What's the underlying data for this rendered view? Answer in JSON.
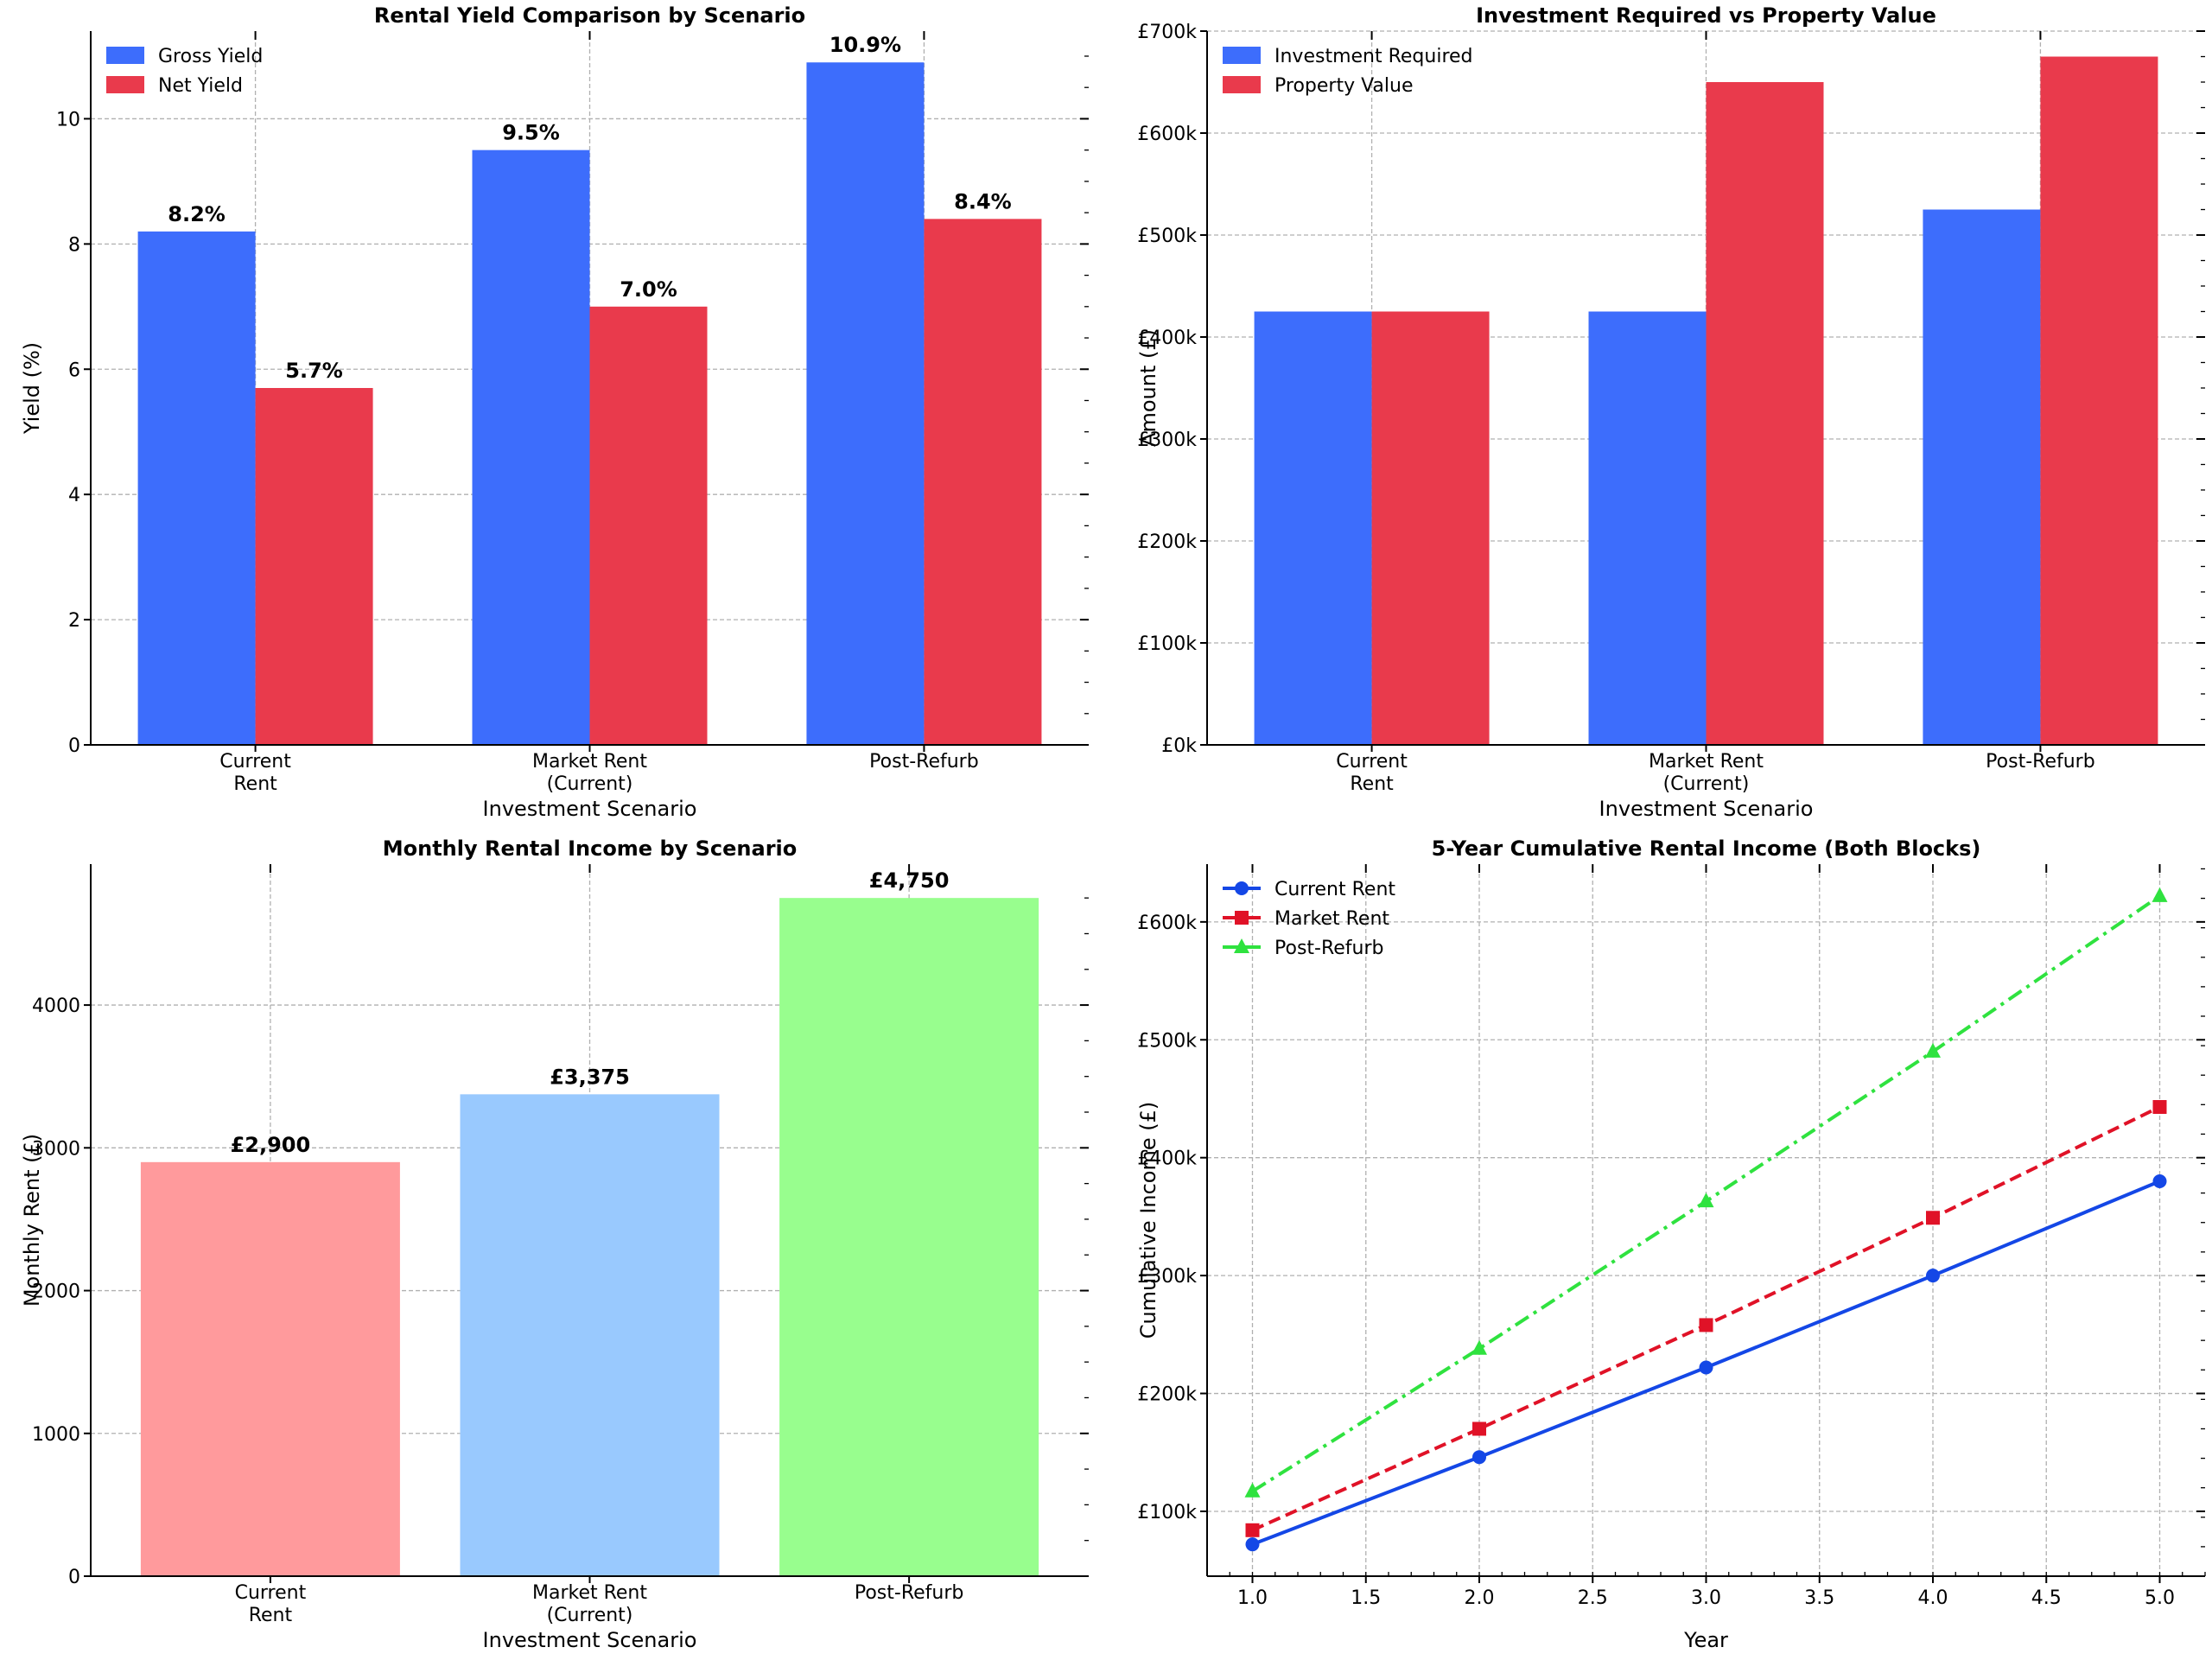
{
  "chart_data": [
    {
      "id": "yield",
      "type": "bar",
      "title": "Rental Yield Comparison by Scenario",
      "xlabel": "Investment Scenario",
      "ylabel": "Yield (%)",
      "categories": [
        [
          "Current",
          "Rent"
        ],
        [
          "Market Rent",
          "(Current)"
        ],
        [
          "Post-Refurb"
        ]
      ],
      "series": [
        {
          "name": "Gross Yield",
          "color": "#3d6dfc",
          "values": [
            8.2,
            9.5,
            10.9
          ],
          "labels": [
            "8.2%",
            "9.5%",
            "10.9%"
          ]
        },
        {
          "name": "Net Yield",
          "color": "#e93a4c",
          "values": [
            5.7,
            7.0,
            8.4
          ],
          "labels": [
            "5.7%",
            "7.0%",
            "8.4%"
          ]
        }
      ],
      "ylim": [
        0,
        11.4
      ],
      "yticks": [
        "0",
        "2",
        "4",
        "6",
        "8",
        "10"
      ],
      "ytick_values": [
        0,
        2,
        4,
        6,
        8,
        10
      ],
      "grid": true,
      "legend": "top-left"
    },
    {
      "id": "investment",
      "type": "bar",
      "title": "Investment Required vs Property Value",
      "xlabel": "Investment Scenario",
      "ylabel": "Amount (£)",
      "categories": [
        [
          "Current",
          "Rent"
        ],
        [
          "Market Rent",
          "(Current)"
        ],
        [
          "Post-Refurb"
        ]
      ],
      "series": [
        {
          "name": "Investment Required",
          "color": "#3d6dfc",
          "values": [
            425000,
            425000,
            525000
          ]
        },
        {
          "name": "Property Value",
          "color": "#e93a4c",
          "values": [
            425000,
            650000,
            675000
          ]
        }
      ],
      "ylim": [
        0,
        700000
      ],
      "yticks": [
        "£0k",
        "£100k",
        "£200k",
        "£300k",
        "£400k",
        "£500k",
        "£600k",
        "£700k"
      ],
      "ytick_values": [
        0,
        100000,
        200000,
        300000,
        400000,
        500000,
        600000,
        700000
      ],
      "grid": true,
      "legend": "top-left"
    },
    {
      "id": "monthly",
      "type": "bar",
      "title": "Monthly Rental Income by Scenario",
      "xlabel": "Investment Scenario",
      "ylabel": "Monthly Rent (£)",
      "categories": [
        [
          "Current",
          "Rent"
        ],
        [
          "Market Rent",
          "(Current)"
        ],
        [
          "Post-Refurb"
        ]
      ],
      "values": [
        2900,
        3375,
        4750
      ],
      "labels": [
        "£2,900",
        "£3,375",
        "£4,750"
      ],
      "colors": [
        "#ff9a9c",
        "#99c9fe",
        "#98fe8e"
      ],
      "ylim": [
        0,
        4987
      ],
      "yticks": [
        "0",
        "1000",
        "2000",
        "3000",
        "4000"
      ],
      "ytick_values": [
        0,
        1000,
        2000,
        3000,
        4000
      ],
      "grid": true
    },
    {
      "id": "cumulative",
      "type": "line",
      "title": "5-Year Cumulative Rental Income (Both Blocks)",
      "xlabel": "Year",
      "ylabel": "Cumulative Income (£)",
      "x": [
        1,
        2,
        3,
        4,
        5
      ],
      "series": [
        {
          "name": "Current Rent",
          "color": "#1447e6",
          "marker": "circle",
          "dash": "solid",
          "values": [
            72000,
            146000,
            222000,
            300000,
            380000
          ]
        },
        {
          "name": "Market Rent",
          "color": "#e01227",
          "marker": "square",
          "dash": "dashed",
          "values": [
            84000,
            170000,
            258000,
            349000,
            443000
          ]
        },
        {
          "name": "Post-Refurb",
          "color": "#2fe23f",
          "marker": "triangle",
          "dash": "dashdot",
          "values": [
            117000,
            238000,
            363000,
            490000,
            622000
          ]
        }
      ],
      "xlim": [
        0.8,
        5.2
      ],
      "ylim": [
        45000,
        649000
      ],
      "xticks": [
        "1.0",
        "1.5",
        "2.0",
        "2.5",
        "3.0",
        "3.5",
        "4.0",
        "4.5",
        "5.0"
      ],
      "xtick_values": [
        1,
        1.5,
        2,
        2.5,
        3,
        3.5,
        4,
        4.5,
        5
      ],
      "yticks": [
        "£100k",
        "£200k",
        "£300k",
        "£400k",
        "£500k",
        "£600k"
      ],
      "ytick_values": [
        100000,
        200000,
        300000,
        400000,
        500000,
        600000
      ],
      "grid": true,
      "legend": "top-left"
    }
  ]
}
